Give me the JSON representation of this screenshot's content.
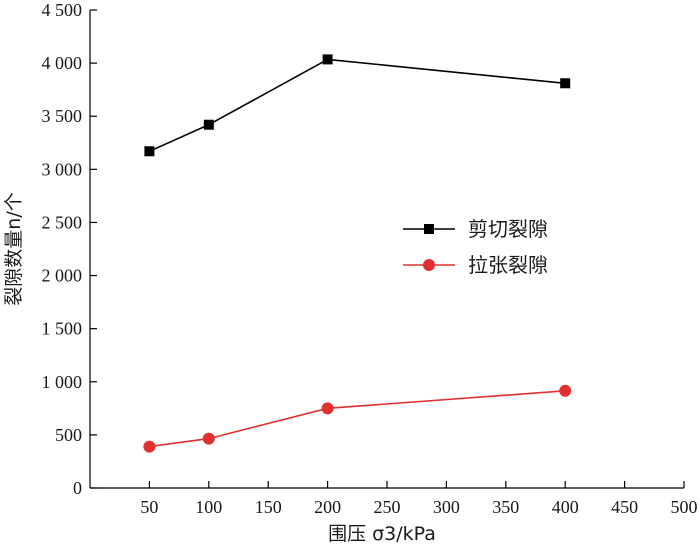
{
  "chart_data": {
    "type": "line",
    "title": "",
    "xlabel": "围压 σ3/kPa",
    "ylabel": "裂隙数量n/个",
    "x": [
      50,
      100,
      200,
      400
    ],
    "xlim": [
      0,
      500
    ],
    "ylim": [
      0,
      4500
    ],
    "x_ticks": [
      50,
      100,
      150,
      200,
      250,
      300,
      350,
      400,
      450,
      500
    ],
    "y_ticks": [
      0,
      500,
      1000,
      1500,
      2000,
      2500,
      3000,
      3500,
      4000,
      4500
    ],
    "x_tick_labels": [
      "50",
      "100",
      "150",
      "200",
      "250",
      "300",
      "350",
      "400",
      "450",
      "500"
    ],
    "y_tick_labels": [
      "0",
      "500",
      "1 000",
      "1 500",
      "2 000",
      "2 500",
      "3 000",
      "3 500",
      "4 000",
      "4 500"
    ],
    "grid": false,
    "legend_position": "center-right",
    "series": [
      {
        "name": "剪切裂隙",
        "values": [
          3170,
          3420,
          4035,
          3810
        ],
        "color": "#000000",
        "marker": "square"
      },
      {
        "name": "拉张裂隙",
        "values": [
          390,
          465,
          750,
          915
        ],
        "color": "#e03030",
        "marker": "circle"
      }
    ]
  }
}
